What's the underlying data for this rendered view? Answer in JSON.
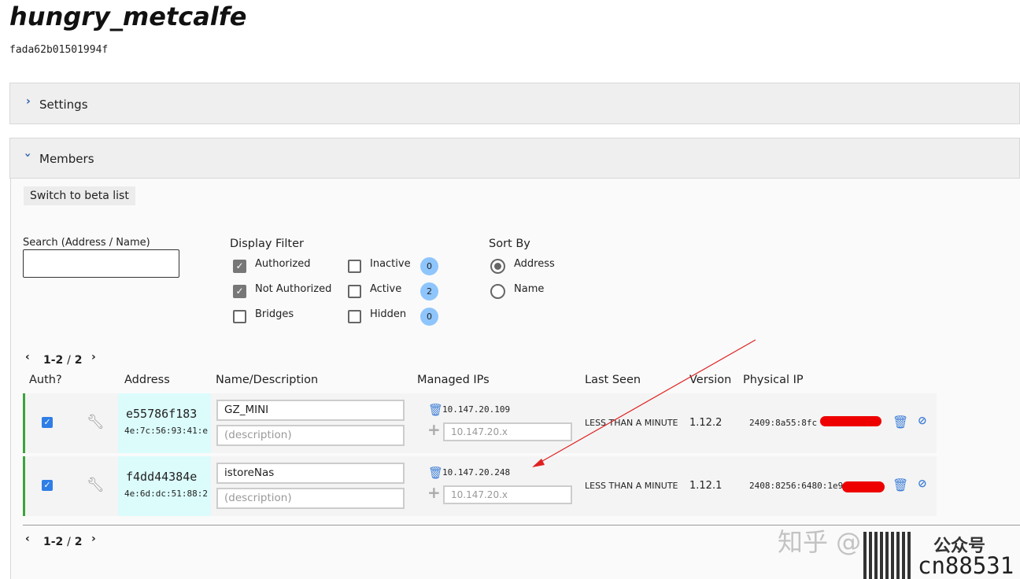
{
  "network": {
    "name": "hungry_metcalfe",
    "id": "fada62b01501994f"
  },
  "settings": {
    "label": "Settings",
    "chevron": "chevron-right-icon"
  },
  "members": {
    "label": "Members",
    "chevron": "chevron-down-icon",
    "beta_button": "Switch to beta list",
    "search": {
      "label": "Search (Address / Name)",
      "value": ""
    },
    "filter": {
      "title": "Display Filter",
      "options": [
        {
          "label": "Authorized",
          "checked": true
        },
        {
          "label": "Not Authorized",
          "checked": true
        },
        {
          "label": "Bridges",
          "checked": false
        },
        {
          "label": "Inactive",
          "checked": false,
          "count": "0"
        },
        {
          "label": "Active",
          "checked": false,
          "count": "2"
        },
        {
          "label": "Hidden",
          "checked": false,
          "count": "0"
        }
      ]
    },
    "sort": {
      "title": "Sort By",
      "options": [
        {
          "label": "Address",
          "selected": true
        },
        {
          "label": "Name",
          "selected": false
        }
      ]
    },
    "pagination": {
      "range": "1-2",
      "sep": "/",
      "total": "2"
    },
    "columns": [
      "Auth?",
      "Address",
      "Name/Description",
      "Managed IPs",
      "Last Seen",
      "Version",
      "Physical IP"
    ],
    "rows": [
      {
        "authorized": true,
        "address": "e55786f183",
        "mac": "4e:7c:56:93:41:e",
        "name": "GZ_MINI",
        "description_placeholder": "(description)",
        "ip": "10.147.20.109",
        "ip_placeholder": "10.147.20.x",
        "last_seen": "LESS THAN A MINUTE",
        "version": "1.12.2",
        "physical_ip": "2409:8a55:8fc"
      },
      {
        "authorized": true,
        "address": "f4dd44384e",
        "mac": "4e:6d:dc:51:88:2",
        "name": "istoreNas",
        "description_placeholder": "(description)",
        "ip": "10.147.20.248",
        "ip_placeholder": "10.147.20.x",
        "last_seen": "LESS THAN A MINUTE",
        "version": "1.12.1",
        "physical_ip": "2408:8256:6480:1e9"
      }
    ]
  },
  "watermark": {
    "text": "知乎 @",
    "code": "cn88531",
    "extra": "公众号"
  },
  "colors": {
    "accent": "#3f7fd6",
    "badge": "#8ec5fc",
    "online": "#3aa53a",
    "address_bg": "#dcfcfc",
    "annotation": "#e02020"
  }
}
